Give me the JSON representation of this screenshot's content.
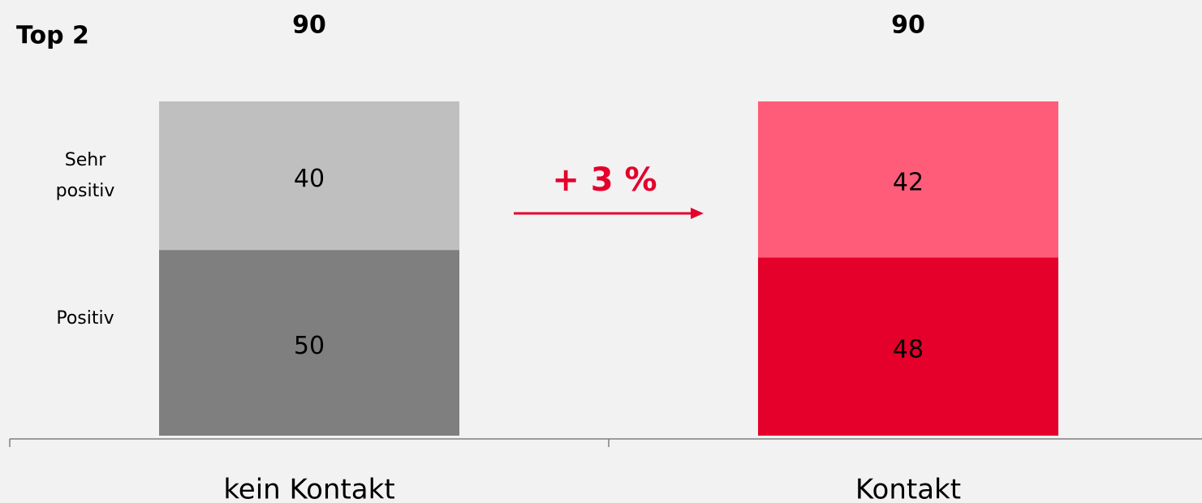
{
  "chart_data": {
    "type": "stacked_bar",
    "title": "Top 2",
    "categories": [
      "kein Kontakt",
      "Kontakt"
    ],
    "series": [
      {
        "name": "Positiv",
        "values": [
          50,
          48
        ],
        "colors": [
          "#7f7f7f",
          "#e4002b"
        ]
      },
      {
        "name": "Sehr positiv",
        "values": [
          40,
          42
        ],
        "colors": [
          "#bfbfbf",
          "#ff5c7a"
        ]
      }
    ],
    "totals": [
      90,
      90
    ],
    "annotation": "+ 3 %",
    "annotation_color": "#e4002b",
    "ylim": [
      0,
      90
    ]
  }
}
